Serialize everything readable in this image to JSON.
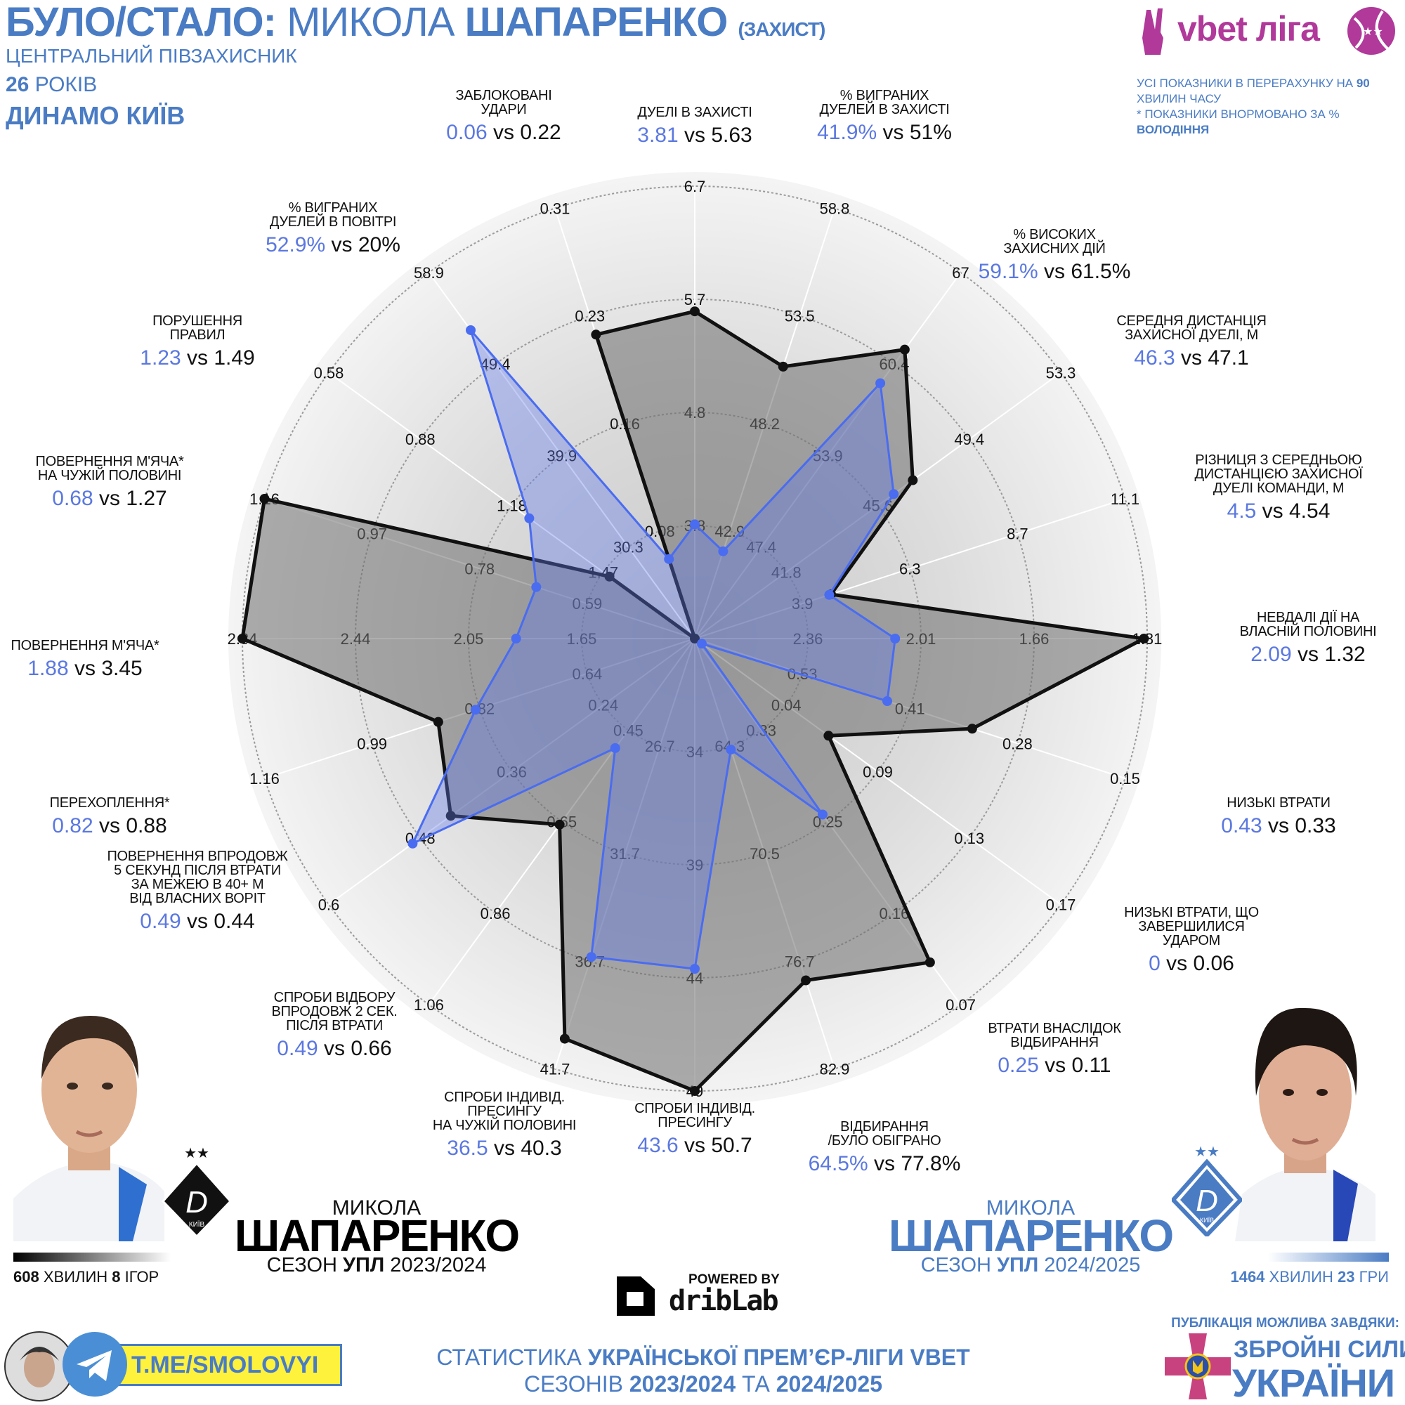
{
  "header": {
    "title_part1": "БУЛО/СТАЛО:",
    "title_part2": "МИКОЛА",
    "title_part3": "ШАПАРЕНКО",
    "title_part4": "(ЗАХИСТ)",
    "position": "ЦЕНТРАЛЬНИЙ ПІВЗАХИСНИК",
    "age_number": "26",
    "age_word": "РОКІВ",
    "club": "ДИНАМО КИЇВ"
  },
  "league_logo": {
    "text": "vbet ліга",
    "color": "#b0399a"
  },
  "notes": {
    "line1": "УСІ ПОКАЗНИКИ В ПЕРЕРАХУНКУ НА",
    "line1_bold": "90",
    "line2": "ХВИЛИН ЧАСУ",
    "line3": "* ПОКАЗНИКИ ВНОРМОВАНО ЗА %",
    "line4": "ВОЛОДІННЯ"
  },
  "chart_data": {
    "type": "radar",
    "grid": true,
    "colors": {
      "current": "#4a6cf0",
      "previous": "#111111"
    },
    "axes": [
      {
        "label": "ДУЕЛІ В ЗАХИСТІ",
        "blue": 3.81,
        "black": 5.63,
        "unit": "",
        "ticks": [
          3.8,
          4.8,
          5.7,
          6.7
        ]
      },
      {
        "label": "% ВИГРАНИХ ДУЕЛЕЙ В ЗАХИСТІ",
        "blue": 41.9,
        "black": 51,
        "unit": "%",
        "ticks": [
          42.9,
          48.2,
          53.5,
          58.8
        ]
      },
      {
        "label": "% ВИСОКИХ ЗАХИСНИХ ДІЙ",
        "blue": 59.1,
        "black": 61.5,
        "unit": "%",
        "ticks": [
          47.4,
          53.9,
          60.4,
          67
        ]
      },
      {
        "label": "СЕРЕДНЯ ДИСТАНЦІЯ ЗАХИСНОЇ ДУЕЛІ, М",
        "blue": 46.3,
        "black": 47.1,
        "unit": "",
        "ticks": [
          41.8,
          45.6,
          49.4,
          53.3
        ]
      },
      {
        "label": "РІЗНИЦЯ З СЕРЕДНЬОЮ ДИСТАНЦІЄЮ ЗАХИСНОЇ ДУЕЛІ КОМАНДИ, М",
        "blue": 4.5,
        "black": 4.54,
        "unit": "",
        "ticks": [
          3.9,
          6.3,
          8.7,
          11.1
        ]
      },
      {
        "label": "НЕВДАЛІ ДІЇ НА ВЛАСНІЙ ПОЛОВИНІ",
        "blue": 2.09,
        "black": 1.32,
        "unit": "",
        "ticks": [
          2.36,
          2.01,
          1.66,
          1.31
        ]
      },
      {
        "label": "НИЗЬКІ ВТРАТИ",
        "blue": 0.43,
        "black": 0.33,
        "unit": "",
        "ticks": [
          0.53,
          0.41,
          0.28,
          0.15
        ]
      },
      {
        "label": "НИЗЬКІ ВТРАТИ, ЩО ЗАВЕРШИЛИСЯ УДАРОМ",
        "blue": 0,
        "black": 0.06,
        "unit": "",
        "ticks": [
          0.04,
          0.09,
          0.13,
          0.17
        ]
      },
      {
        "label": "ВТРАТИ ВНАСЛІДОК ВІДБИРАННЯ",
        "blue": 0.25,
        "black": 0.11,
        "unit": "",
        "ticks": [
          0.33,
          0.25,
          0.16,
          0.07
        ]
      },
      {
        "label": "ВІДБИРАННЯ /БУЛО ОБІГРАНО",
        "blue": 64.5,
        "black": 77.8,
        "unit": "%",
        "ticks": [
          64.3,
          70.5,
          76.7,
          82.9
        ]
      },
      {
        "label": "СПРОБИ ІНДИВІД. ПРЕСИНГУ",
        "blue": 43.6,
        "black": 50.7,
        "unit": "",
        "ticks": [
          34,
          39,
          44,
          49
        ]
      },
      {
        "label": "СПРОБИ ІНДИВІД. ПРЕСИНГУ НА ЧУЖІЙ ПОЛОВИНІ",
        "blue": 36.5,
        "black": 40.3,
        "unit": "",
        "ticks": [
          26.7,
          31.7,
          36.7,
          41.7
        ]
      },
      {
        "label": "СПРОБИ ВІДБОРУ ВПРОДОВЖ 2 СЕК. ПІСЛЯ ВТРАТИ",
        "blue": 0.49,
        "black": 0.66,
        "unit": "",
        "ticks": [
          0.45,
          0.65,
          0.86,
          1.06
        ]
      },
      {
        "label": "ПОВЕРНЕННЯ ВПРОДОВЖ 5 СЕКУНД ПІСЛЯ ВТРАТИ ЗА МЕЖЕЮ В 40+ М ВІД ВЛАСНИХ ВОРІТ",
        "blue": 0.49,
        "black": 0.44,
        "unit": "",
        "ticks": [
          0.24,
          0.36,
          0.48,
          0.6
        ]
      },
      {
        "label": "ПЕРЕХОПЛЕННЯ*",
        "blue": 0.82,
        "black": 0.88,
        "unit": "",
        "ticks": [
          0.64,
          0.82,
          0.99,
          1.16
        ]
      },
      {
        "label": "ПОВЕРНЕННЯ М'ЯЧА*",
        "blue": 1.88,
        "black": 3.45,
        "unit": "",
        "ticks": [
          1.65,
          2.05,
          2.44,
          2.84
        ]
      },
      {
        "label": "ПОВЕРНЕННЯ М'ЯЧА* НА ЧУЖІЙ ПОЛОВИНІ",
        "blue": 0.68,
        "black": 1.27,
        "unit": "",
        "ticks": [
          0.59,
          0.78,
          0.97,
          1.16
        ]
      },
      {
        "label": "ПОРУШЕННЯ ПРАВИЛ",
        "blue": 1.23,
        "black": 1.49,
        "unit": "",
        "ticks": [
          1.47,
          1.18,
          0.88,
          0.58
        ]
      },
      {
        "label": "% ВИГРАНИХ ДУЕЛЕЙ В ПОВІТРІ",
        "blue": 52.9,
        "black": 20,
        "unit": "%",
        "ticks": [
          30.3,
          39.9,
          49.4,
          58.9
        ]
      },
      {
        "label": "ЗАБЛОКОВАНІ УДАРИ",
        "blue": 0.06,
        "black": 0.22,
        "unit": "",
        "ticks": [
          0.08,
          0.16,
          0.23,
          0.31
        ]
      }
    ],
    "vs_word": "vs"
  },
  "player_prev": {
    "first_name": "МИКОЛА",
    "last_name": "ШАПАРЕНКО",
    "season_word": "СЕЗОН",
    "league": "УПЛ",
    "season": "2023/2024",
    "minutes": "608",
    "minutes_word": "ХВИЛИН",
    "games": "8",
    "games_word": "ІГОР",
    "club_badge": "КИЇВ"
  },
  "player_curr": {
    "first_name": "МИКОЛА",
    "last_name": "ШАПАРЕНКО",
    "season_word": "СЕЗОН",
    "league": "УПЛ",
    "season": "2024/2025",
    "minutes": "1464",
    "minutes_word": "ХВИЛИН",
    "games": "23",
    "games_word": "ГРИ",
    "club_badge": "КИЇВ"
  },
  "powered": {
    "label": "POWERED BY",
    "brand": "dribLab"
  },
  "telegram": {
    "link": "T.ME/SMOLOVYI"
  },
  "footer": {
    "line1_a": "СТАТИСТИКА",
    "line1_b": "УКРАЇНСЬКОЇ ПРЕМ’ЄР-ЛІГИ VBET",
    "line2_a": "СЕЗОНІВ",
    "line2_b": "2023/2024",
    "line2_c": "ТА",
    "line2_d": "2024/2025"
  },
  "sponsor": {
    "caption": "ПУБЛІКАЦІЯ МОЖЛИВА ЗАВДЯКИ:",
    "line1": "ЗБРОЙНІ СИЛИ",
    "line2": "УКРАЇНИ"
  }
}
